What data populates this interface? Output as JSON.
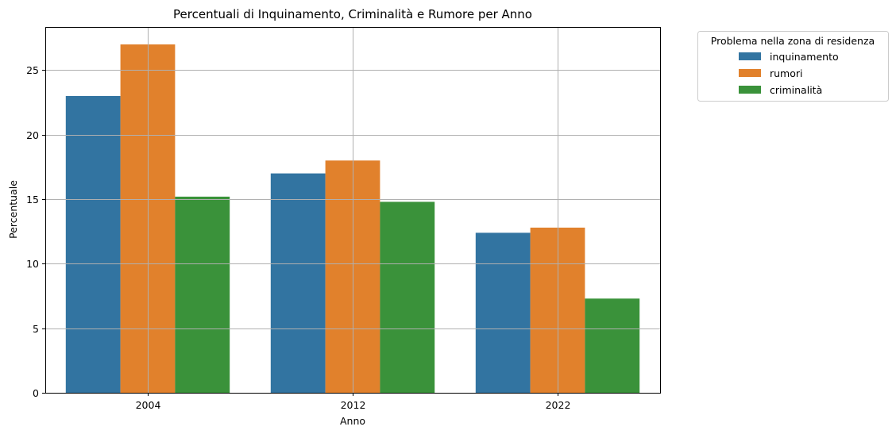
{
  "chart_data": {
    "type": "bar",
    "title": "Percentuali di Inquinamento, Criminalità e Rumore per Anno",
    "xlabel": "Anno",
    "ylabel": "Percentuale",
    "categories": [
      "2004",
      "2012",
      "2022"
    ],
    "series": [
      {
        "name": "inquinamento",
        "color": "#3274a1",
        "values": [
          23.0,
          17.0,
          12.4
        ]
      },
      {
        "name": "rumori",
        "color": "#e1812c",
        "values": [
          27.0,
          18.0,
          12.8
        ]
      },
      {
        "name": "criminalità",
        "color": "#3a923a",
        "values": [
          15.2,
          14.8,
          7.3
        ]
      }
    ],
    "ylim": [
      0,
      28.35
    ],
    "yticks": [
      0,
      5,
      10,
      15,
      20,
      25
    ],
    "grid": true,
    "legend": {
      "title": "Problema nella zona di residenza",
      "placement": "outside top-right"
    }
  }
}
